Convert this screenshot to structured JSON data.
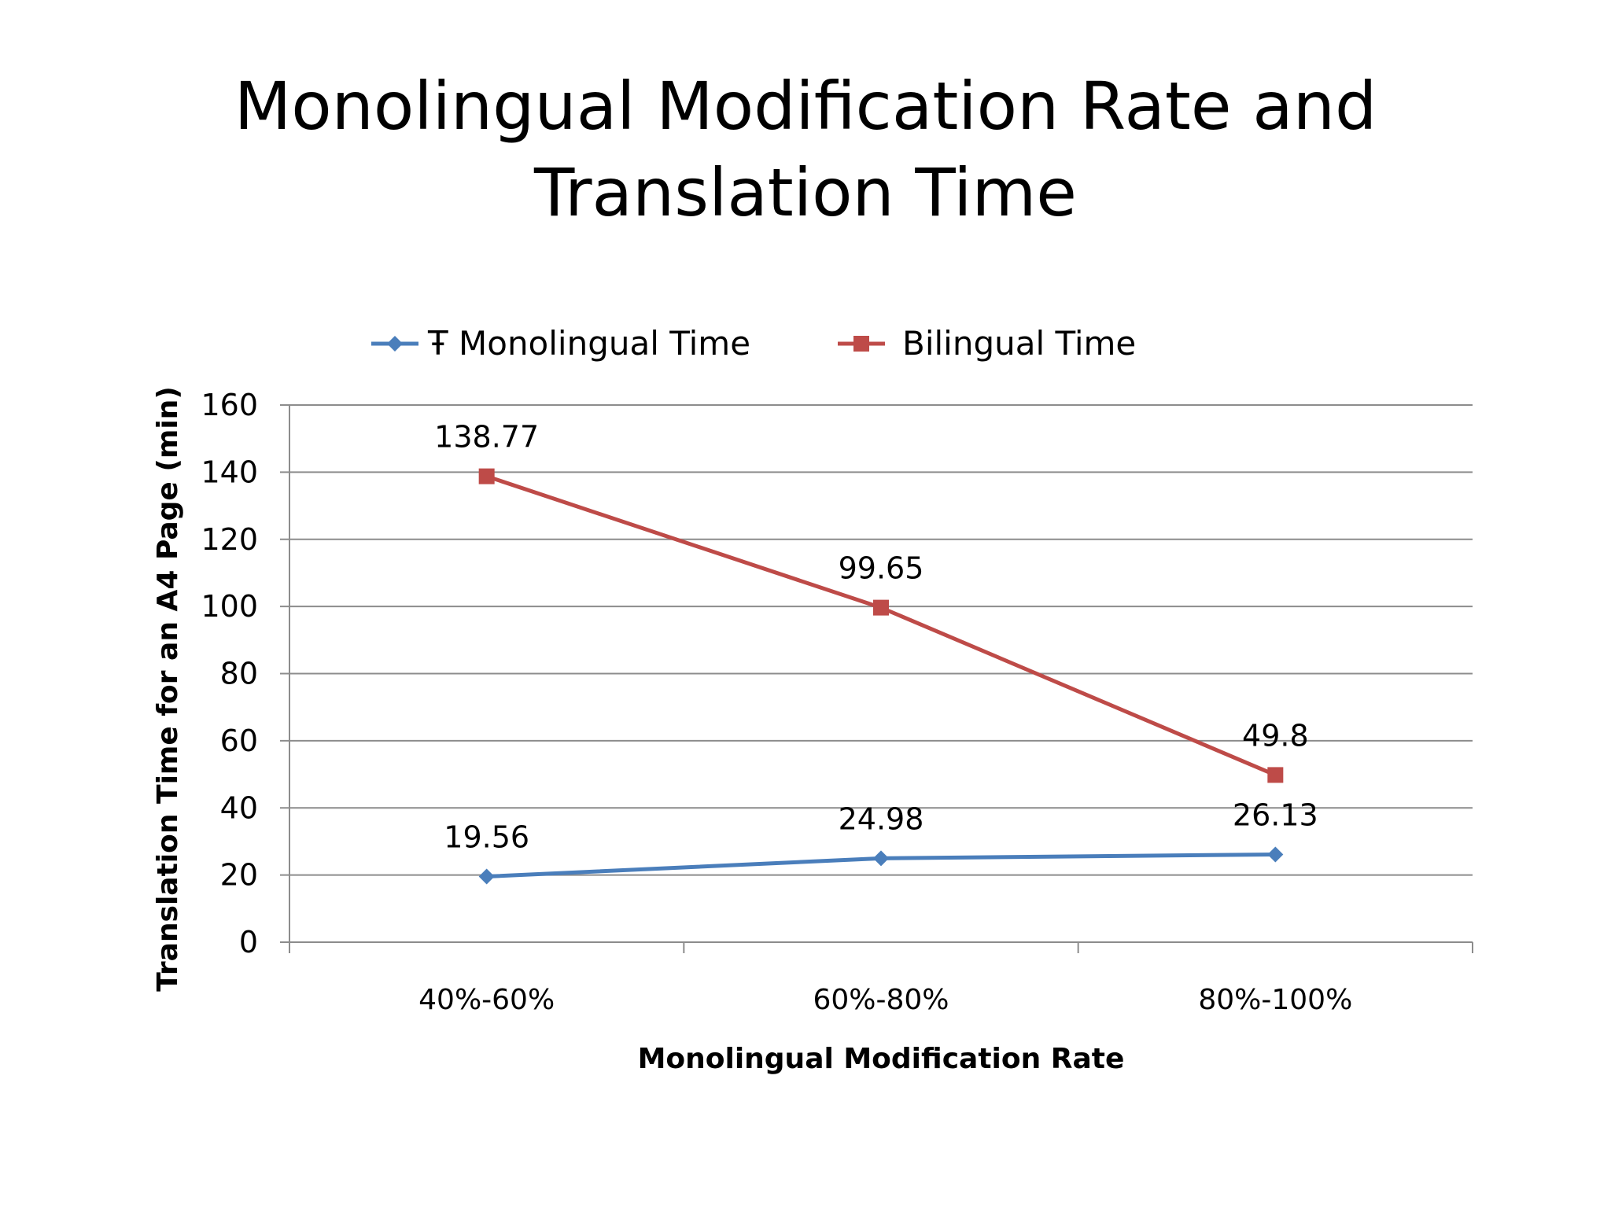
{
  "slide": {
    "title": "Monolingual Modification Rate and Translation Time"
  },
  "chart_data": {
    "type": "line",
    "title": "Monolingual Modification Rate and Translation Time",
    "xlabel": "Monolingual Modification Rate",
    "ylabel": "Translation Time for an A4 Page (min)",
    "categories": [
      "40%-60%",
      "60%-80%",
      "80%-100%"
    ],
    "ylim": [
      0,
      160
    ],
    "yticks": [
      0,
      20,
      40,
      60,
      80,
      100,
      120,
      140,
      160
    ],
    "grid": true,
    "legend_position": "top",
    "series": [
      {
        "name": "Monolingual Time",
        "legend_label": "Ŧ Monolingual Time",
        "color": "#4a7ebb",
        "marker": "diamond",
        "values": [
          19.56,
          24.98,
          26.13
        ],
        "labels": [
          "19.56",
          "24.98",
          "26.13"
        ]
      },
      {
        "name": "Bilingual Time",
        "legend_label": "Bilingual Time",
        "color": "#be4b48",
        "marker": "square",
        "values": [
          138.77,
          99.65,
          49.8
        ],
        "labels": [
          "138.77",
          "99.65",
          "49.8"
        ]
      }
    ]
  }
}
